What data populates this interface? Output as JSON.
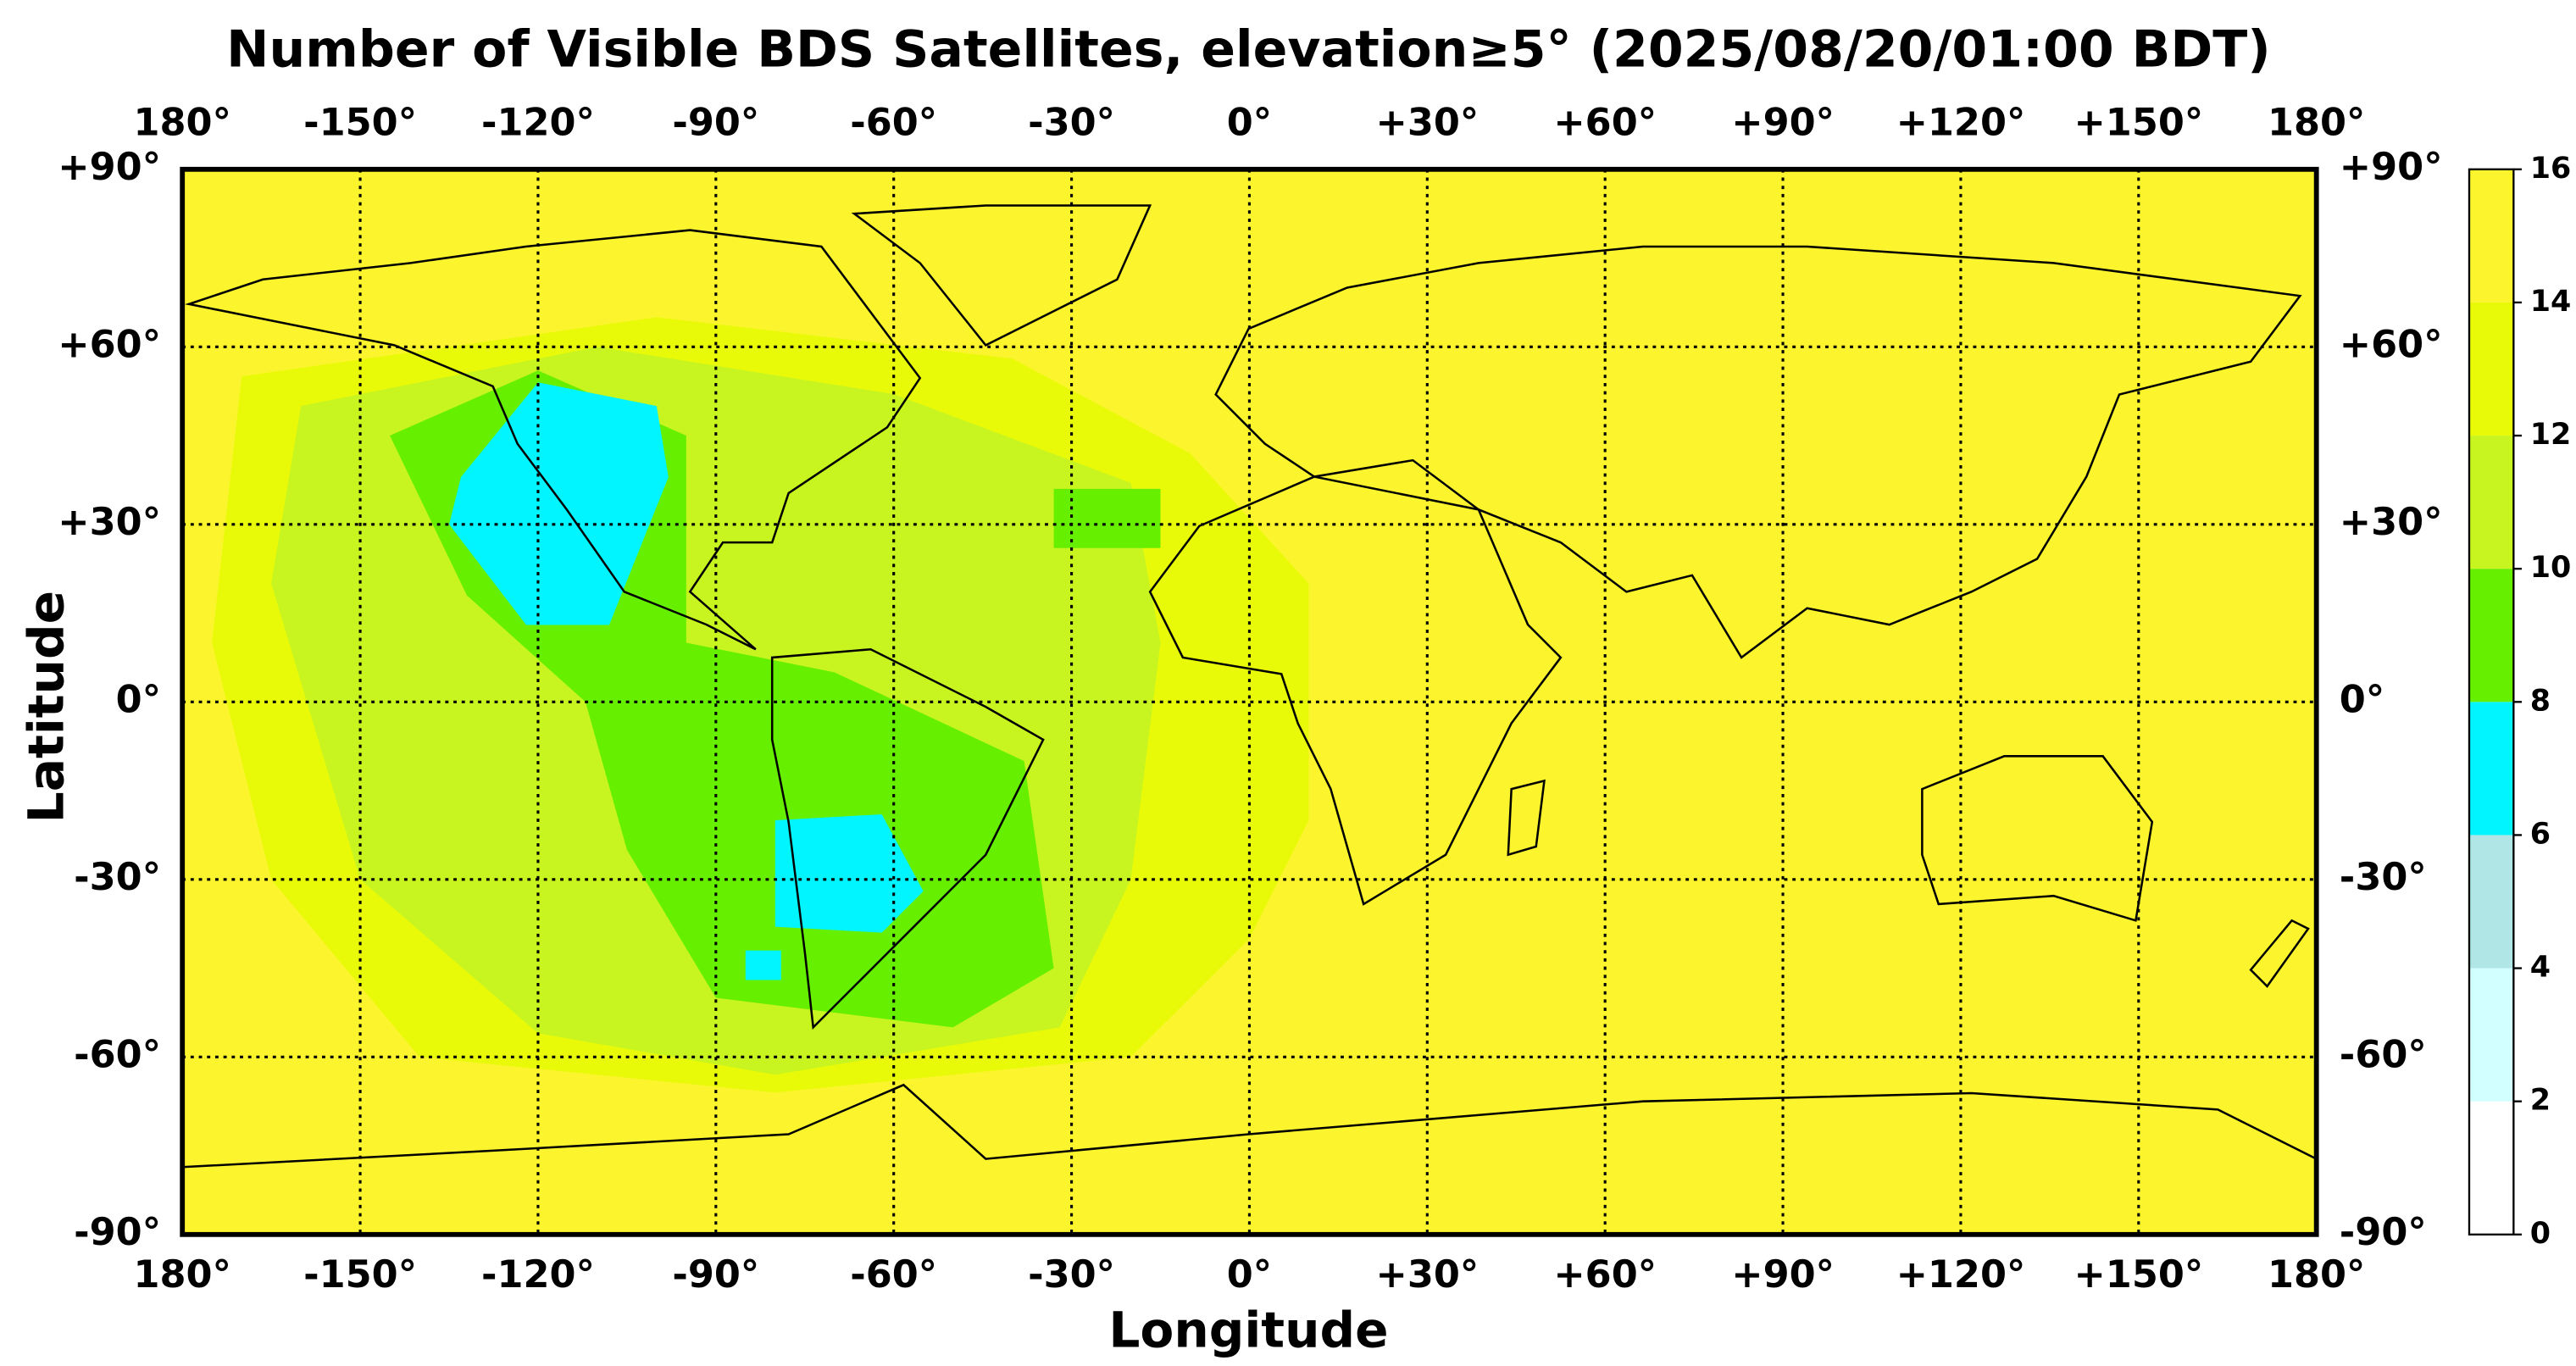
{
  "chart_data": {
    "type": "map",
    "title": "Number of Visible BDS Satellites, elevation≥5° (2025/08/20/01:00 BDT)",
    "xlabel": "Longitude",
    "ylabel": "Latitude",
    "xlim": [
      -180,
      180
    ],
    "ylim": [
      -90,
      90
    ],
    "xticks": [
      {
        "value": -180,
        "label": "180°"
      },
      {
        "value": -150,
        "label": "-150°"
      },
      {
        "value": -120,
        "label": "-120°"
      },
      {
        "value": -90,
        "label": "-90°"
      },
      {
        "value": -60,
        "label": "-60°"
      },
      {
        "value": -30,
        "label": "-30°"
      },
      {
        "value": 0,
        "label": "0°"
      },
      {
        "value": 30,
        "label": "+30°"
      },
      {
        "value": 60,
        "label": "+60°"
      },
      {
        "value": 90,
        "label": "+90°"
      },
      {
        "value": 120,
        "label": "+120°"
      },
      {
        "value": 150,
        "label": "+150°"
      },
      {
        "value": 180,
        "label": "180°"
      }
    ],
    "yticks": [
      {
        "value": 90,
        "label": "+90°"
      },
      {
        "value": 60,
        "label": "+60°"
      },
      {
        "value": 30,
        "label": "+30°"
      },
      {
        "value": 0,
        "label": "0°"
      },
      {
        "value": -30,
        "label": "-30°"
      },
      {
        "value": -60,
        "label": "-60°"
      },
      {
        "value": -90,
        "label": "-90°"
      }
    ],
    "grid": true,
    "colorbar": {
      "bounds": [
        0,
        2,
        4,
        6,
        8,
        10,
        12,
        14,
        16
      ],
      "colors": [
        "#ffffff",
        "#d2ffff",
        "#b0e6e6",
        "#00f5ff",
        "#66f000",
        "#c8f520",
        "#e8fa08",
        "#fcf42c"
      ]
    },
    "background_value": 15,
    "regions": [
      {
        "value": 13,
        "polygon": [
          [
            -170,
            55
          ],
          [
            -100,
            65
          ],
          [
            -40,
            58
          ],
          [
            -10,
            42
          ],
          [
            10,
            20
          ],
          [
            10,
            -20
          ],
          [
            0,
            -40
          ],
          [
            -20,
            -60
          ],
          [
            -80,
            -66
          ],
          [
            -140,
            -60
          ],
          [
            -165,
            -30
          ],
          [
            -175,
            10
          ]
        ]
      },
      {
        "value": 11,
        "polygon": [
          [
            -160,
            50
          ],
          [
            -110,
            60
          ],
          [
            -60,
            52
          ],
          [
            -20,
            37
          ],
          [
            -15,
            10
          ],
          [
            -20,
            -30
          ],
          [
            -32,
            -55
          ],
          [
            -80,
            -63
          ],
          [
            -120,
            -56
          ],
          [
            -150,
            -30
          ],
          [
            -165,
            20
          ]
        ]
      },
      {
        "value": 9,
        "polygon": [
          [
            -145,
            45
          ],
          [
            -120,
            56
          ],
          [
            -95,
            45
          ],
          [
            -95,
            10
          ],
          [
            -70,
            5
          ],
          [
            -38,
            -10
          ],
          [
            -33,
            -45
          ],
          [
            -50,
            -55
          ],
          [
            -90,
            -50
          ],
          [
            -105,
            -25
          ],
          [
            -112,
            0
          ],
          [
            -132,
            18
          ]
        ]
      },
      {
        "value": 9,
        "polygon": [
          [
            -33,
            36
          ],
          [
            -15,
            36
          ],
          [
            -15,
            26
          ],
          [
            -33,
            26
          ]
        ]
      },
      {
        "value": 7,
        "polygon": [
          [
            -133,
            38
          ],
          [
            -120,
            54
          ],
          [
            -100,
            50
          ],
          [
            -98,
            38
          ],
          [
            -108,
            13
          ],
          [
            -122,
            13
          ],
          [
            -135,
            30
          ]
        ]
      },
      {
        "value": 7,
        "polygon": [
          [
            -80,
            -20
          ],
          [
            -62,
            -19
          ],
          [
            -55,
            -32
          ],
          [
            -62,
            -39
          ],
          [
            -80,
            -38
          ]
        ]
      },
      {
        "value": 7,
        "polygon": [
          [
            -85,
            -42
          ],
          [
            -79,
            -42
          ],
          [
            -79,
            -47
          ],
          [
            -85,
            -47
          ]
        ]
      }
    ]
  }
}
